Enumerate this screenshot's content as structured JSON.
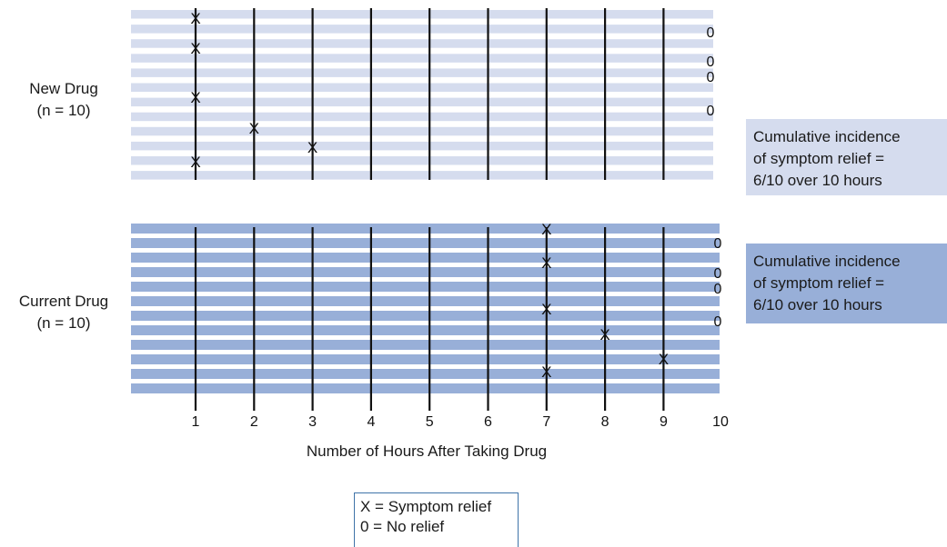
{
  "colors": {
    "new_drug_stripe": "#d5dcee",
    "current_drug_stripe": "#98afd8",
    "line": "#111111",
    "legend_border": "#3f73a8"
  },
  "panels": [
    {
      "label_line1": "New Drug",
      "label_line2": "(n = 10)",
      "summary_line1": "Cumulative incidence",
      "summary_line2": "of symptom relief =",
      "summary_line3": "6/10 over 10 hours"
    },
    {
      "label_line1": "Current Drug",
      "label_line2": "(n = 10)",
      "summary_line1": "Cumulative incidence",
      "summary_line2": "of symptom relief =",
      "summary_line3": "6/10 over 10 hours"
    }
  ],
  "chart_data": {
    "type": "scatter",
    "x_axis_label": "Number of Hours After Taking Drug",
    "x_ticks": [
      "1",
      "2",
      "3",
      "4",
      "5",
      "6",
      "7",
      "8",
      "9",
      "10"
    ],
    "markers": {
      "relief": "X",
      "no_relief": "0"
    },
    "new_drug": {
      "relief_hours": [
        1,
        1,
        1,
        2,
        3,
        1
      ],
      "no_relief_count": 4
    },
    "current_drug": {
      "relief_hours": [
        7,
        7,
        7,
        8,
        9,
        7
      ],
      "no_relief_count": 4
    }
  },
  "legend": {
    "line1": "X = Symptom relief",
    "line2": "0 = No relief"
  }
}
